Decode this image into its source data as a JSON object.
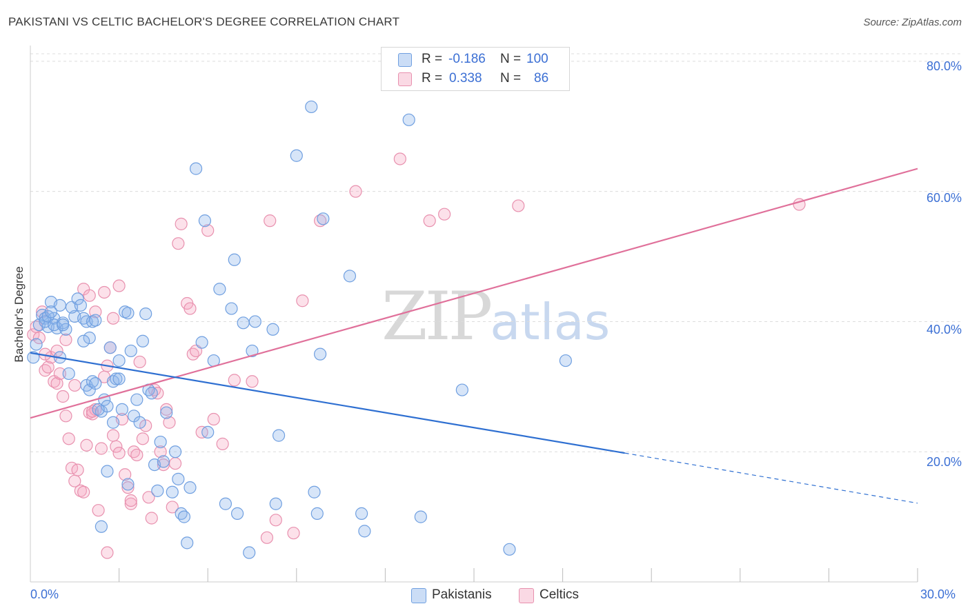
{
  "title": "PAKISTANI VS CELTIC BACHELOR'S DEGREE CORRELATION CHART",
  "source": "Source: ZipAtlas.com",
  "watermark": {
    "zip": "ZIP",
    "atlas": "atlas"
  },
  "colors": {
    "blue": "#6f9fe0",
    "blue_fill": "rgba(140,180,235,0.35)",
    "blue_line": "#2e6fd1",
    "pink": "#e890ae",
    "pink_fill": "rgba(245,170,195,0.35)",
    "pink_line": "#e0709a",
    "tick_text": "#3b6fd4"
  },
  "legend": {
    "rows": [
      {
        "r_label": "R = ",
        "r_value": "-0.186",
        "n_label": "N = ",
        "n_value": "100"
      },
      {
        "r_label": "R = ",
        "r_value": "0.338",
        "n_label": "N = ",
        "n_value": "86"
      }
    ]
  },
  "bottom_legend": [
    "Pakistanis",
    "Celtics"
  ],
  "chart_data": {
    "type": "scatter",
    "title": "PAKISTANI VS CELTIC BACHELOR'S DEGREE CORRELATION CHART",
    "xlabel": "",
    "ylabel": "Bachelor's Degree",
    "xlim": [
      0,
      30
    ],
    "ylim": [
      0,
      82
    ],
    "x_tick_labels": [
      "0.0%",
      "30.0%"
    ],
    "y_tick_labels": [
      "20.0%",
      "40.0%",
      "60.0%",
      "80.0%"
    ],
    "y_tick_values": [
      20,
      40,
      60,
      80
    ],
    "x_minor_ticks": [
      3,
      6,
      9,
      12,
      15,
      18,
      21,
      24,
      27,
      30
    ],
    "series": [
      {
        "name": "Pakistanis",
        "r": -0.186,
        "n": 100,
        "trend": {
          "x0": 0,
          "y0": 35.2,
          "x1": 20.1,
          "y1": 19.8,
          "dash_to_x": 30,
          "dash_to_y": 12.1
        },
        "points": [
          [
            0.1,
            34.5
          ],
          [
            0.2,
            36.5
          ],
          [
            0.3,
            39.5
          ],
          [
            0.4,
            41.0
          ],
          [
            0.5,
            40.5
          ],
          [
            0.6,
            39.2
          ],
          [
            0.7,
            43.0
          ],
          [
            0.8,
            40.5
          ],
          [
            0.9,
            39.0
          ],
          [
            1.0,
            42.5
          ],
          [
            0.5,
            40.0
          ],
          [
            0.6,
            40.8
          ],
          [
            0.7,
            41.5
          ],
          [
            0.8,
            39.5
          ],
          [
            1.1,
            39.8
          ],
          [
            1.2,
            38.8
          ],
          [
            1.0,
            34.5
          ],
          [
            1.3,
            32.0
          ],
          [
            1.1,
            39.5
          ],
          [
            1.5,
            40.8
          ],
          [
            1.4,
            42.2
          ],
          [
            1.6,
            43.5
          ],
          [
            1.7,
            42.5
          ],
          [
            1.8,
            40.5
          ],
          [
            1.9,
            40.0
          ],
          [
            2.0,
            37.5
          ],
          [
            2.1,
            40.0
          ],
          [
            2.2,
            40.2
          ],
          [
            1.8,
            37.0
          ],
          [
            1.9,
            30.2
          ],
          [
            2.0,
            29.5
          ],
          [
            2.1,
            30.8
          ],
          [
            2.2,
            30.5
          ],
          [
            2.4,
            26.2
          ],
          [
            2.5,
            28.0
          ],
          [
            2.6,
            27.0
          ],
          [
            2.7,
            36.0
          ],
          [
            2.8,
            30.8
          ],
          [
            2.9,
            31.2
          ],
          [
            3.0,
            34.0
          ],
          [
            3.1,
            26.5
          ],
          [
            3.2,
            41.5
          ],
          [
            3.3,
            41.3
          ],
          [
            3.4,
            35.5
          ],
          [
            3.5,
            25.5
          ],
          [
            3.6,
            28.0
          ],
          [
            3.7,
            24.5
          ],
          [
            3.8,
            37.0
          ],
          [
            3.9,
            41.2
          ],
          [
            4.0,
            29.5
          ],
          [
            4.1,
            29.0
          ],
          [
            4.2,
            18.0
          ],
          [
            4.3,
            14.0
          ],
          [
            4.4,
            21.5
          ],
          [
            4.5,
            18.5
          ],
          [
            4.6,
            26.0
          ],
          [
            4.8,
            13.8
          ],
          [
            4.9,
            20.0
          ],
          [
            5.0,
            15.8
          ],
          [
            5.1,
            10.5
          ],
          [
            2.3,
            26.5
          ],
          [
            2.4,
            8.5
          ],
          [
            2.6,
            17.0
          ],
          [
            2.8,
            24.5
          ],
          [
            3.0,
            31.2
          ],
          [
            3.3,
            15.0
          ],
          [
            5.2,
            10.0
          ],
          [
            5.3,
            6.0
          ],
          [
            5.4,
            14.5
          ],
          [
            5.6,
            63.5
          ],
          [
            5.8,
            36.8
          ],
          [
            5.9,
            55.5
          ],
          [
            6.0,
            23.0
          ],
          [
            6.2,
            34.0
          ],
          [
            6.4,
            45.0
          ],
          [
            6.6,
            12.0
          ],
          [
            6.8,
            42.0
          ],
          [
            6.9,
            49.5
          ],
          [
            7.0,
            10.5
          ],
          [
            7.2,
            39.8
          ],
          [
            7.4,
            4.5
          ],
          [
            7.5,
            35.5
          ],
          [
            7.6,
            40.0
          ],
          [
            8.2,
            38.8
          ],
          [
            8.3,
            12.0
          ],
          [
            8.4,
            22.5
          ],
          [
            9.0,
            65.5
          ],
          [
            9.5,
            73.0
          ],
          [
            9.6,
            13.8
          ],
          [
            9.7,
            10.5
          ],
          [
            9.8,
            35.0
          ],
          [
            9.9,
            55.8
          ],
          [
            10.8,
            47.0
          ],
          [
            11.2,
            10.5
          ],
          [
            11.3,
            7.8
          ],
          [
            12.8,
            71.0
          ],
          [
            13.2,
            10.0
          ],
          [
            14.6,
            29.5
          ],
          [
            16.2,
            5.0
          ],
          [
            18.1,
            34.0
          ]
        ]
      },
      {
        "name": "Celtics",
        "r": 0.338,
        "n": 86,
        "trend": {
          "x0": 0,
          "y0": 25.2,
          "x1": 30,
          "y1": 63.5
        },
        "points": [
          [
            0.1,
            38.0
          ],
          [
            0.2,
            39.2
          ],
          [
            0.3,
            37.5
          ],
          [
            0.4,
            41.5
          ],
          [
            0.5,
            32.5
          ],
          [
            0.6,
            33.0
          ],
          [
            0.7,
            34.5
          ],
          [
            0.8,
            30.8
          ],
          [
            0.9,
            30.5
          ],
          [
            1.0,
            32.0
          ],
          [
            1.1,
            28.5
          ],
          [
            1.2,
            25.5
          ],
          [
            1.3,
            22.0
          ],
          [
            1.4,
            17.5
          ],
          [
            1.5,
            15.5
          ],
          [
            1.6,
            17.2
          ],
          [
            1.7,
            14.0
          ],
          [
            1.8,
            13.8
          ],
          [
            1.9,
            21.0
          ],
          [
            2.0,
            26.0
          ],
          [
            2.1,
            25.8
          ],
          [
            2.2,
            26.5
          ],
          [
            2.3,
            11.0
          ],
          [
            2.4,
            20.5
          ],
          [
            2.5,
            31.5
          ],
          [
            2.6,
            33.2
          ],
          [
            2.7,
            36.0
          ],
          [
            2.8,
            22.5
          ],
          [
            2.9,
            20.8
          ],
          [
            3.0,
            19.8
          ],
          [
            1.8,
            45.0
          ],
          [
            2.0,
            44.0
          ],
          [
            2.2,
            41.5
          ],
          [
            2.5,
            44.5
          ],
          [
            2.8,
            40.5
          ],
          [
            3.0,
            45.5
          ],
          [
            3.1,
            25.0
          ],
          [
            3.2,
            16.5
          ],
          [
            3.3,
            14.5
          ],
          [
            3.4,
            12.0
          ],
          [
            3.5,
            20.0
          ],
          [
            3.6,
            19.5
          ],
          [
            3.7,
            33.8
          ],
          [
            3.8,
            22.0
          ],
          [
            3.9,
            24.0
          ],
          [
            4.0,
            13.0
          ],
          [
            4.1,
            9.8
          ],
          [
            4.2,
            29.5
          ],
          [
            4.3,
            29.0
          ],
          [
            4.4,
            20.0
          ],
          [
            4.5,
            18.0
          ],
          [
            4.6,
            26.5
          ],
          [
            4.7,
            24.5
          ],
          [
            4.8,
            11.5
          ],
          [
            4.9,
            18.2
          ],
          [
            5.0,
            52.0
          ],
          [
            5.1,
            55.0
          ],
          [
            5.3,
            42.8
          ],
          [
            5.4,
            42.0
          ],
          [
            5.5,
            35.0
          ],
          [
            5.6,
            35.5
          ],
          [
            5.8,
            23.0
          ],
          [
            6.0,
            54.0
          ],
          [
            6.2,
            25.0
          ],
          [
            6.5,
            21.2
          ],
          [
            6.9,
            31.0
          ],
          [
            7.5,
            30.8
          ],
          [
            8.0,
            6.8
          ],
          [
            8.1,
            55.5
          ],
          [
            8.3,
            9.5
          ],
          [
            8.9,
            7.5
          ],
          [
            9.2,
            43.2
          ],
          [
            9.8,
            55.5
          ],
          [
            11.0,
            60.0
          ],
          [
            12.5,
            65.0
          ],
          [
            13.5,
            55.5
          ],
          [
            14.0,
            56.5
          ],
          [
            16.5,
            57.8
          ],
          [
            26.0,
            58.0
          ],
          [
            2.6,
            4.5
          ],
          [
            3.4,
            12.5
          ],
          [
            2.1,
            26.2
          ],
          [
            1.5,
            30.2
          ],
          [
            1.2,
            37.2
          ],
          [
            0.9,
            35.5
          ],
          [
            0.5,
            35.0
          ]
        ]
      }
    ]
  }
}
